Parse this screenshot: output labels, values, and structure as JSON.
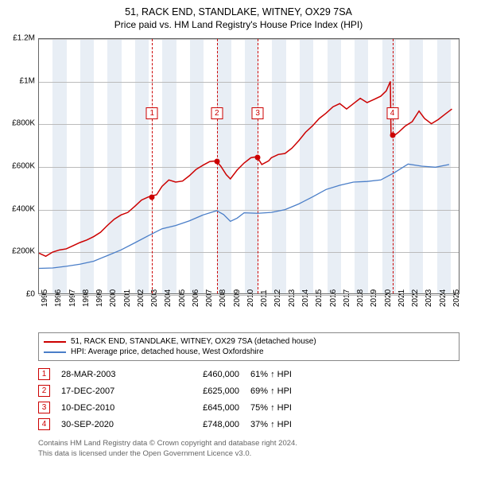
{
  "title": "51, RACK END, STANDLAKE, WITNEY, OX29 7SA",
  "subtitle": "Price paid vs. HM Land Registry's House Price Index (HPI)",
  "chart": {
    "type": "line",
    "background_color": "#ffffff",
    "grid_color": "#bbbbbb",
    "shade_color": "#e8eef5",
    "x_start": 1995,
    "x_end": 2025.7,
    "y_min": 0,
    "y_max": 1200000,
    "y_ticks": [
      {
        "v": 0,
        "label": "£0"
      },
      {
        "v": 200000,
        "label": "£200K"
      },
      {
        "v": 400000,
        "label": "£400K"
      },
      {
        "v": 600000,
        "label": "£600K"
      },
      {
        "v": 800000,
        "label": "£800K"
      },
      {
        "v": 1000000,
        "label": "£1M"
      },
      {
        "v": 1200000,
        "label": "£1.2M"
      }
    ],
    "x_ticks": [
      1995,
      1996,
      1997,
      1998,
      1999,
      2000,
      2001,
      2002,
      2003,
      2004,
      2005,
      2006,
      2007,
      2008,
      2009,
      2010,
      2011,
      2012,
      2013,
      2014,
      2015,
      2016,
      2017,
      2018,
      2019,
      2020,
      2021,
      2022,
      2023,
      2024,
      2025
    ],
    "x_label_fontsize": 10,
    "y_label_fontsize": 10,
    "shaded_years": [
      1996,
      1998,
      2000,
      2002,
      2004,
      2006,
      2008,
      2010,
      2012,
      2014,
      2016,
      2018,
      2020,
      2022,
      2024
    ],
    "series": [
      {
        "name": "51, RACK END, STANDLAKE, WITNEY, OX29 7SA (detached house)",
        "color": "#cc0000",
        "width": 1.5,
        "points": [
          [
            1995.0,
            190000
          ],
          [
            1995.5,
            175000
          ],
          [
            1996.0,
            195000
          ],
          [
            1996.5,
            205000
          ],
          [
            1997.0,
            210000
          ],
          [
            1997.5,
            225000
          ],
          [
            1998.0,
            240000
          ],
          [
            1998.5,
            252000
          ],
          [
            1999.0,
            268000
          ],
          [
            1999.5,
            288000
          ],
          [
            2000.0,
            320000
          ],
          [
            2000.5,
            350000
          ],
          [
            2001.0,
            370000
          ],
          [
            2001.5,
            382000
          ],
          [
            2002.0,
            410000
          ],
          [
            2002.5,
            440000
          ],
          [
            2003.0,
            455000
          ],
          [
            2003.24,
            460000
          ],
          [
            2003.6,
            465000
          ],
          [
            2004.0,
            505000
          ],
          [
            2004.5,
            535000
          ],
          [
            2005.0,
            525000
          ],
          [
            2005.5,
            530000
          ],
          [
            2006.0,
            555000
          ],
          [
            2006.5,
            585000
          ],
          [
            2007.0,
            605000
          ],
          [
            2007.5,
            622000
          ],
          [
            2007.96,
            625000
          ],
          [
            2008.3,
            600000
          ],
          [
            2008.7,
            560000
          ],
          [
            2009.0,
            540000
          ],
          [
            2009.5,
            582000
          ],
          [
            2010.0,
            615000
          ],
          [
            2010.5,
            640000
          ],
          [
            2010.94,
            645000
          ],
          [
            2011.3,
            608000
          ],
          [
            2011.8,
            625000
          ],
          [
            2012.0,
            640000
          ],
          [
            2012.5,
            655000
          ],
          [
            2013.0,
            660000
          ],
          [
            2013.5,
            685000
          ],
          [
            2014.0,
            720000
          ],
          [
            2014.5,
            760000
          ],
          [
            2015.0,
            790000
          ],
          [
            2015.5,
            825000
          ],
          [
            2016.0,
            850000
          ],
          [
            2016.5,
            880000
          ],
          [
            2017.0,
            895000
          ],
          [
            2017.5,
            870000
          ],
          [
            2018.0,
            895000
          ],
          [
            2018.5,
            920000
          ],
          [
            2019.0,
            900000
          ],
          [
            2019.5,
            915000
          ],
          [
            2020.0,
            930000
          ],
          [
            2020.4,
            955000
          ],
          [
            2020.7,
            1000000
          ],
          [
            2020.75,
            748000
          ],
          [
            2020.9,
            740000
          ],
          [
            2021.3,
            760000
          ],
          [
            2021.8,
            790000
          ],
          [
            2022.3,
            810000
          ],
          [
            2022.8,
            860000
          ],
          [
            2023.2,
            825000
          ],
          [
            2023.7,
            800000
          ],
          [
            2024.2,
            820000
          ],
          [
            2024.7,
            845000
          ],
          [
            2025.2,
            870000
          ]
        ]
      },
      {
        "name": "HPI: Average price, detached house, West Oxfordshire",
        "color": "#4a7ec8",
        "width": 1.3,
        "points": [
          [
            1995.0,
            118000
          ],
          [
            1996.0,
            120000
          ],
          [
            1997.0,
            128000
          ],
          [
            1998.0,
            138000
          ],
          [
            1999.0,
            152000
          ],
          [
            2000.0,
            178000
          ],
          [
            2001.0,
            205000
          ],
          [
            2002.0,
            238000
          ],
          [
            2003.0,
            272000
          ],
          [
            2004.0,
            305000
          ],
          [
            2005.0,
            320000
          ],
          [
            2006.0,
            342000
          ],
          [
            2007.0,
            370000
          ],
          [
            2008.0,
            390000
          ],
          [
            2008.5,
            372000
          ],
          [
            2009.0,
            340000
          ],
          [
            2009.5,
            355000
          ],
          [
            2010.0,
            380000
          ],
          [
            2011.0,
            378000
          ],
          [
            2012.0,
            382000
          ],
          [
            2013.0,
            395000
          ],
          [
            2014.0,
            422000
          ],
          [
            2015.0,
            455000
          ],
          [
            2016.0,
            490000
          ],
          [
            2017.0,
            510000
          ],
          [
            2018.0,
            525000
          ],
          [
            2019.0,
            528000
          ],
          [
            2020.0,
            535000
          ],
          [
            2021.0,
            570000
          ],
          [
            2022.0,
            610000
          ],
          [
            2023.0,
            600000
          ],
          [
            2024.0,
            595000
          ],
          [
            2025.0,
            608000
          ]
        ]
      }
    ],
    "markers": [
      {
        "num": "1",
        "year": 2003.24,
        "value": 460000,
        "box_top": 86
      },
      {
        "num": "2",
        "year": 2007.96,
        "value": 625000,
        "box_top": 86
      },
      {
        "num": "3",
        "year": 2010.94,
        "value": 645000,
        "box_top": 86
      },
      {
        "num": "4",
        "year": 2020.75,
        "value": 748000,
        "box_top": 86
      }
    ]
  },
  "legend": [
    {
      "color": "#cc0000",
      "label": "51, RACK END, STANDLAKE, WITNEY, OX29 7SA (detached house)"
    },
    {
      "color": "#4a7ec8",
      "label": "HPI: Average price, detached house, West Oxfordshire"
    }
  ],
  "transactions": [
    {
      "num": "1",
      "date": "28-MAR-2003",
      "price": "£460,000",
      "hpi": "61% ↑ HPI"
    },
    {
      "num": "2",
      "date": "17-DEC-2007",
      "price": "£625,000",
      "hpi": "69% ↑ HPI"
    },
    {
      "num": "3",
      "date": "10-DEC-2010",
      "price": "£645,000",
      "hpi": "75% ↑ HPI"
    },
    {
      "num": "4",
      "date": "30-SEP-2020",
      "price": "£748,000",
      "hpi": "37% ↑ HPI"
    }
  ],
  "footer_line1": "Contains HM Land Registry data © Crown copyright and database right 2024.",
  "footer_line2": "This data is licensed under the Open Government Licence v3.0."
}
